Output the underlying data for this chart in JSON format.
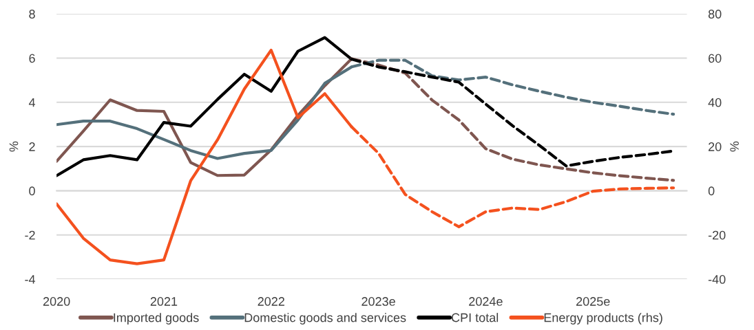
{
  "chart_data": {
    "type": "line",
    "categories": [
      "2020",
      null,
      null,
      null,
      "2021",
      null,
      null,
      null,
      "2022",
      null,
      null,
      null,
      "2023e",
      null,
      null,
      null,
      "2024e",
      null,
      null,
      null,
      "2025e",
      null,
      null,
      null
    ],
    "ylabel": "%",
    "y2label": "%",
    "ylim": [
      -4,
      8
    ],
    "yticks": [
      -4,
      -2,
      0,
      2,
      4,
      6,
      8
    ],
    "y2lim": [
      -40,
      80
    ],
    "y2ticks": [
      -40,
      -20,
      0,
      20,
      40,
      60,
      80
    ],
    "grid": "y",
    "legend": "bottom",
    "line_style": "solid",
    "marker": "none",
    "series": [
      {
        "name": "Imported goods",
        "color": "#7f5650",
        "values": [
          1.33,
          2.7,
          4.11,
          3.63,
          3.59,
          1.28,
          0.69,
          0.71,
          1.85,
          3.41,
          4.75,
          5.97,
          null,
          null,
          null,
          null,
          null,
          null,
          null,
          null,
          null,
          null,
          null,
          null
        ]
      },
      {
        "name": "Domestic goods and services",
        "color": "#54707b",
        "values": [
          2.99,
          3.15,
          3.15,
          2.81,
          2.32,
          1.82,
          1.46,
          1.69,
          1.82,
          3.2,
          4.86,
          5.6,
          null,
          null,
          null,
          null,
          null,
          null,
          null,
          null,
          null,
          null,
          null,
          null
        ]
      },
      {
        "name": "CPI total",
        "color": "#000000",
        "values": [
          0.68,
          1.4,
          1.59,
          1.4,
          3.09,
          2.92,
          4.13,
          5.27,
          4.5,
          6.31,
          6.93,
          5.95,
          null,
          null,
          null,
          null,
          null,
          null,
          null,
          null,
          null,
          null,
          null,
          null
        ]
      },
      {
        "name": "Energy products (rhs)",
        "color": "#f4511e",
        "axis": "y2",
        "values": [
          -5.9,
          -21.5,
          -31.3,
          -33,
          -31.3,
          4.5,
          23,
          46,
          63.6,
          33,
          43.9,
          28.9,
          null,
          null,
          null,
          null,
          null,
          null,
          null,
          null,
          null,
          null,
          null,
          null
        ]
      },
      {
        "color": "#7f5650",
        "line_style": "dashed",
        "values": [
          null,
          null,
          null,
          null,
          null,
          null,
          null,
          null,
          null,
          null,
          null,
          5.97,
          5.69,
          5.32,
          4.1,
          3.2,
          1.9,
          1.43,
          1.17,
          0.99,
          0.81,
          0.68,
          0.57,
          0.47
        ]
      },
      {
        "color": "#54707b",
        "line_style": "dashed",
        "values": [
          null,
          null,
          null,
          null,
          null,
          null,
          null,
          null,
          null,
          null,
          null,
          5.6,
          5.9,
          5.9,
          5.2,
          5.01,
          5.14,
          4.79,
          4.5,
          4.23,
          4.0,
          3.82,
          3.63,
          3.46
        ]
      },
      {
        "color": "#000000",
        "line_style": "dashed",
        "values": [
          null,
          null,
          null,
          null,
          null,
          null,
          null,
          null,
          null,
          null,
          null,
          5.95,
          5.6,
          5.38,
          5.14,
          4.91,
          3.92,
          2.94,
          2.05,
          1.12,
          1.33,
          1.51,
          1.64,
          1.8
        ]
      },
      {
        "color": "#f4511e",
        "axis": "y2",
        "line_style": "dashed",
        "values": [
          null,
          null,
          null,
          null,
          null,
          null,
          null,
          null,
          null,
          null,
          null,
          28.9,
          17,
          -1.7,
          -9.5,
          -16.3,
          -9.5,
          -7.8,
          -8.5,
          -4.9,
          -0.2,
          0.8,
          1.1,
          1.3
        ]
      }
    ]
  }
}
